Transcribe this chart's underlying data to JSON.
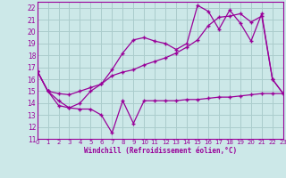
{
  "xlabel": "Windchill (Refroidissement éolien,°C)",
  "bg_color": "#cce8e8",
  "grid_color": "#aacccc",
  "line_color": "#990099",
  "xmin": 0,
  "xmax": 23,
  "ymin": 11,
  "ymax": 22.5,
  "line1_x": [
    0,
    1,
    2,
    3,
    4,
    5,
    6,
    7,
    8,
    9,
    10,
    11,
    12,
    13,
    14,
    15,
    16,
    17,
    18,
    19,
    20,
    21,
    22,
    23
  ],
  "line1_y": [
    16.7,
    15.0,
    13.8,
    13.6,
    13.5,
    13.5,
    13.0,
    11.5,
    14.2,
    12.3,
    14.2,
    14.2,
    14.2,
    14.2,
    14.3,
    14.3,
    14.4,
    14.5,
    14.5,
    14.6,
    14.7,
    14.8,
    14.8,
    14.8
  ],
  "line2_x": [
    0,
    1,
    2,
    3,
    4,
    5,
    6,
    7,
    8,
    9,
    10,
    11,
    12,
    13,
    14,
    15,
    16,
    17,
    18,
    19,
    20,
    21,
    22,
    23
  ],
  "line2_y": [
    16.7,
    15.0,
    14.8,
    14.7,
    15.0,
    15.3,
    15.6,
    16.3,
    16.6,
    16.8,
    17.2,
    17.5,
    17.8,
    18.2,
    18.7,
    19.3,
    20.5,
    21.2,
    21.3,
    21.5,
    20.8,
    21.3,
    16.0,
    14.8
  ],
  "line3_x": [
    0,
    1,
    2,
    3,
    4,
    5,
    6,
    7,
    8,
    9,
    10,
    11,
    12,
    13,
    14,
    15,
    16,
    17,
    18,
    19,
    20,
    21,
    22,
    23
  ],
  "line3_y": [
    16.7,
    15.0,
    14.2,
    13.6,
    14.0,
    15.0,
    15.6,
    16.8,
    18.2,
    19.3,
    19.5,
    19.2,
    19.0,
    18.5,
    19.0,
    22.2,
    21.7,
    20.2,
    21.8,
    20.7,
    19.2,
    21.5,
    16.0,
    14.8
  ],
  "yticks": [
    11,
    12,
    13,
    14,
    15,
    16,
    17,
    18,
    19,
    20,
    21,
    22
  ],
  "xticks": [
    0,
    1,
    2,
    3,
    4,
    5,
    6,
    7,
    8,
    9,
    10,
    11,
    12,
    13,
    14,
    15,
    16,
    17,
    18,
    19,
    20,
    21,
    22,
    23
  ]
}
